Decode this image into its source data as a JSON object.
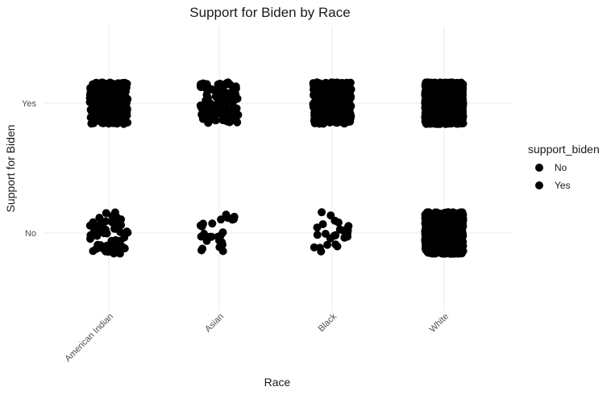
{
  "chart_data": {
    "type": "scatter",
    "subtype": "jitter",
    "title": "Support for Biden by Race",
    "xlabel": "Race",
    "ylabel": "Support for Biden",
    "categories": [
      "American Indian",
      "Asian",
      "Black",
      "White"
    ],
    "y_levels": [
      "No",
      "Yes"
    ],
    "grid": true,
    "legend": {
      "title": "support_biden",
      "position": "right",
      "entries": [
        "No",
        "Yes"
      ],
      "marker_color": "#000000"
    },
    "approx_point_counts": {
      "American Indian": {
        "No": 60,
        "Yes": 300
      },
      "Asian": {
        "No": 25,
        "Yes": 110
      },
      "Black": {
        "No": 25,
        "Yes": 400
      },
      "White": {
        "No": 1200,
        "Yes": 1800
      }
    },
    "jitter": {
      "x_width": 0.4,
      "y_height": 0.4
    },
    "colors": {
      "point": "#000000",
      "grid": "#ebebeb"
    }
  }
}
